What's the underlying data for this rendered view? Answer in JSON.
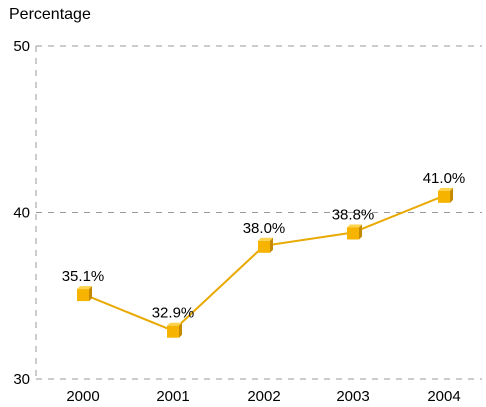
{
  "chart_data": {
    "type": "line",
    "ylabel": "Percentage",
    "xlabel": "",
    "categories": [
      "2000",
      "2001",
      "2002",
      "2003",
      "2004"
    ],
    "series": [
      {
        "values": [
          35.1,
          32.9,
          38.0,
          38.8,
          41.0
        ]
      }
    ],
    "data_labels": [
      "35.1%",
      "32.9%",
      "38.0%",
      "38.8%",
      "41.0%"
    ],
    "ylim": [
      30,
      50
    ],
    "yticks": [
      30,
      40,
      50
    ],
    "grid": true,
    "colors": {
      "line": "#E8A900",
      "marker_front": "#F6B400",
      "marker_top": "#FFD34D",
      "marker_side": "#C48A00"
    }
  }
}
